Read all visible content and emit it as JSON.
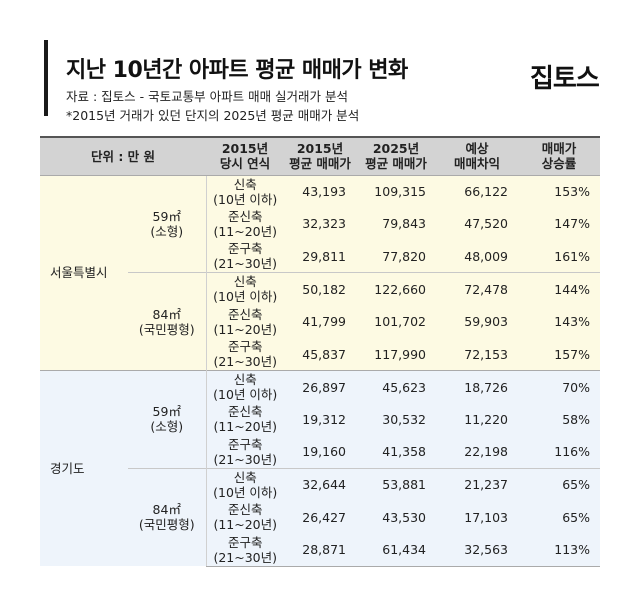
{
  "header": {
    "title": "지난 10년간 아파트 평균 매매가 변화",
    "source": "자료 : 집토스 - 국토교통부 아파트 매매 실거래가 분석",
    "note": "*2015년 거래가 있던 단지의 2025년 평균 매매가 분석",
    "logo": "집토스"
  },
  "table": {
    "headers": {
      "unit": "단위 : 만 원",
      "age_l1": "2015년",
      "age_l2": "당시 연식",
      "p2015_l1": "2015년",
      "p2015_l2": "평균 매매가",
      "p2025_l1": "2025년",
      "p2025_l2": "평균 매매가",
      "diff_l1": "예상",
      "diff_l2": "매매차익",
      "rate_l1": "매매가",
      "rate_l2": "상승률"
    },
    "regions": [
      {
        "name": "서울특별시",
        "groups": [
          {
            "size": "59㎡",
            "size_label": "(소형)",
            "rows": [
              {
                "age1": "신축",
                "age2": "(10년 이하)",
                "p2015": "43,193",
                "p2025": "109,315",
                "diff": "66,122",
                "rate": "153%"
              },
              {
                "age1": "준신축",
                "age2": "(11~20년)",
                "p2015": "32,323",
                "p2025": "79,843",
                "diff": "47,520",
                "rate": "147%"
              },
              {
                "age1": "준구축",
                "age2": "(21~30년)",
                "p2015": "29,811",
                "p2025": "77,820",
                "diff": "48,009",
                "rate": "161%"
              }
            ]
          },
          {
            "size": "84㎡",
            "size_label": "(국민평형)",
            "rows": [
              {
                "age1": "신축",
                "age2": "(10년 이하)",
                "p2015": "50,182",
                "p2025": "122,660",
                "diff": "72,478",
                "rate": "144%"
              },
              {
                "age1": "준신축",
                "age2": "(11~20년)",
                "p2015": "41,799",
                "p2025": "101,702",
                "diff": "59,903",
                "rate": "143%"
              },
              {
                "age1": "준구축",
                "age2": "(21~30년)",
                "p2015": "45,837",
                "p2025": "117,990",
                "diff": "72,153",
                "rate": "157%"
              }
            ]
          }
        ]
      },
      {
        "name": "경기도",
        "groups": [
          {
            "size": "59㎡",
            "size_label": "(소형)",
            "rows": [
              {
                "age1": "신축",
                "age2": "(10년 이하)",
                "p2015": "26,897",
                "p2025": "45,623",
                "diff": "18,726",
                "rate": "70%"
              },
              {
                "age1": "준신축",
                "age2": "(11~20년)",
                "p2015": "19,312",
                "p2025": "30,532",
                "diff": "11,220",
                "rate": "58%"
              },
              {
                "age1": "준구축",
                "age2": "(21~30년)",
                "p2015": "19,160",
                "p2025": "41,358",
                "diff": "22,198",
                "rate": "116%"
              }
            ]
          },
          {
            "size": "84㎡",
            "size_label": "(국민평형)",
            "rows": [
              {
                "age1": "신축",
                "age2": "(10년 이하)",
                "p2015": "32,644",
                "p2025": "53,881",
                "diff": "21,237",
                "rate": "65%"
              },
              {
                "age1": "준신축",
                "age2": "(11~20년)",
                "p2015": "26,427",
                "p2025": "43,530",
                "diff": "17,103",
                "rate": "65%"
              },
              {
                "age1": "준구축",
                "age2": "(21~30년)",
                "p2015": "28,871",
                "p2025": "61,434",
                "diff": "32,563",
                "rate": "113%"
              }
            ]
          }
        ]
      }
    ]
  }
}
